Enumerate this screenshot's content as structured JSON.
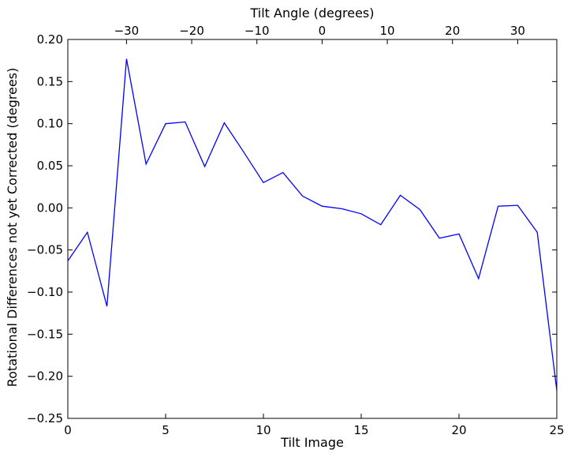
{
  "chart_data": {
    "type": "line",
    "xlabel": "Tilt Image",
    "ylabel": "Rotational Differences not yet Corrected (degrees)",
    "top_xlabel": "Tilt Angle (degrees)",
    "xlim": [
      0,
      25
    ],
    "ylim": [
      -0.25,
      0.2
    ],
    "grid": false,
    "x_ticks": [
      {
        "value": 0,
        "label": "0"
      },
      {
        "value": 5,
        "label": "5"
      },
      {
        "value": 10,
        "label": "10"
      },
      {
        "value": 15,
        "label": "15"
      },
      {
        "value": 20,
        "label": "20"
      },
      {
        "value": 25,
        "label": "25"
      }
    ],
    "y_ticks": [
      {
        "value": 0.2,
        "label": "0.20"
      },
      {
        "value": 0.15,
        "label": "0.15"
      },
      {
        "value": 0.1,
        "label": "0.10"
      },
      {
        "value": 0.05,
        "label": "0.05"
      },
      {
        "value": 0.0,
        "label": "0.00"
      },
      {
        "value": -0.05,
        "label": "−0.05"
      },
      {
        "value": -0.1,
        "label": "−0.10"
      },
      {
        "value": -0.15,
        "label": "−0.15"
      },
      {
        "value": -0.2,
        "label": "−0.20"
      },
      {
        "value": -0.25,
        "label": "−0.25"
      }
    ],
    "top_x_ticks": [
      {
        "value": -30,
        "label": "−30"
      },
      {
        "value": -20,
        "label": "−20"
      },
      {
        "value": -10,
        "label": "−10"
      },
      {
        "value": 0,
        "label": "0"
      },
      {
        "value": 10,
        "label": "10"
      },
      {
        "value": 20,
        "label": "20"
      },
      {
        "value": 30,
        "label": "30"
      }
    ],
    "top_axis_mapping": {
      "angle_at_image_0": -39,
      "angle_step_per_image": 3
    },
    "series": [
      {
        "color": "#0000ff",
        "x": [
          0,
          1,
          2,
          3,
          4,
          5,
          6,
          7,
          8,
          9,
          10,
          11,
          12,
          13,
          14,
          15,
          16,
          17,
          18,
          19,
          20,
          21,
          22,
          23,
          24,
          25
        ],
        "values": [
          -0.063,
          -0.029,
          -0.117,
          0.177,
          0.052,
          0.1,
          0.102,
          0.049,
          0.101,
          0.066,
          0.03,
          0.042,
          0.014,
          0.002,
          -0.001,
          -0.007,
          -0.02,
          0.015,
          -0.002,
          -0.036,
          -0.031,
          -0.084,
          0.002,
          0.003,
          -0.029,
          -0.217
        ]
      }
    ]
  }
}
